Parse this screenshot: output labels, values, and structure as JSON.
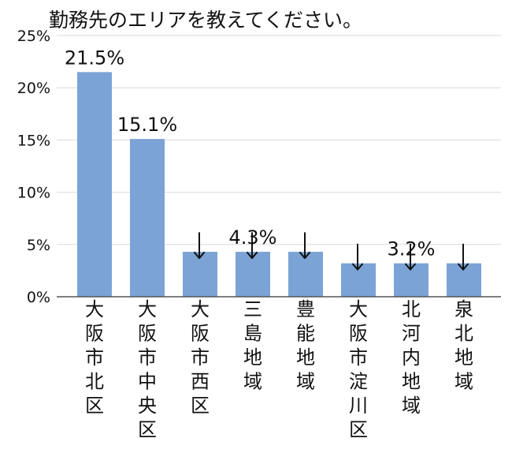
{
  "chart_data": {
    "type": "bar",
    "title": "勤務先のエリアを教えてください。",
    "categories": [
      "大阪市北区",
      "大阪市中央区",
      "大阪市西区",
      "三島地域",
      "豊能地域",
      "大阪市淀川区",
      "北河内地域",
      "泉北地域"
    ],
    "values": [
      21.5,
      15.1,
      4.3,
      4.3,
      4.3,
      3.2,
      3.2,
      3.2
    ],
    "data_labels": [
      "21.5%",
      "15.1%",
      "",
      "4.3%",
      "",
      "",
      "3.2%",
      ""
    ],
    "arrow_marks": [
      false,
      false,
      true,
      true,
      true,
      true,
      true,
      true
    ],
    "y_ticks": [
      "0%",
      "5%",
      "10%",
      "15%",
      "20%",
      "25%"
    ],
    "y_tick_values": [
      0,
      5,
      10,
      15,
      20,
      25
    ],
    "ylim": [
      0,
      25
    ],
    "xlabel": "",
    "ylabel": "",
    "grid": true,
    "legend": "none",
    "bar_color": "#7ba3d6",
    "grid_color": "#d9d9d9",
    "axis_color": "#555555"
  }
}
